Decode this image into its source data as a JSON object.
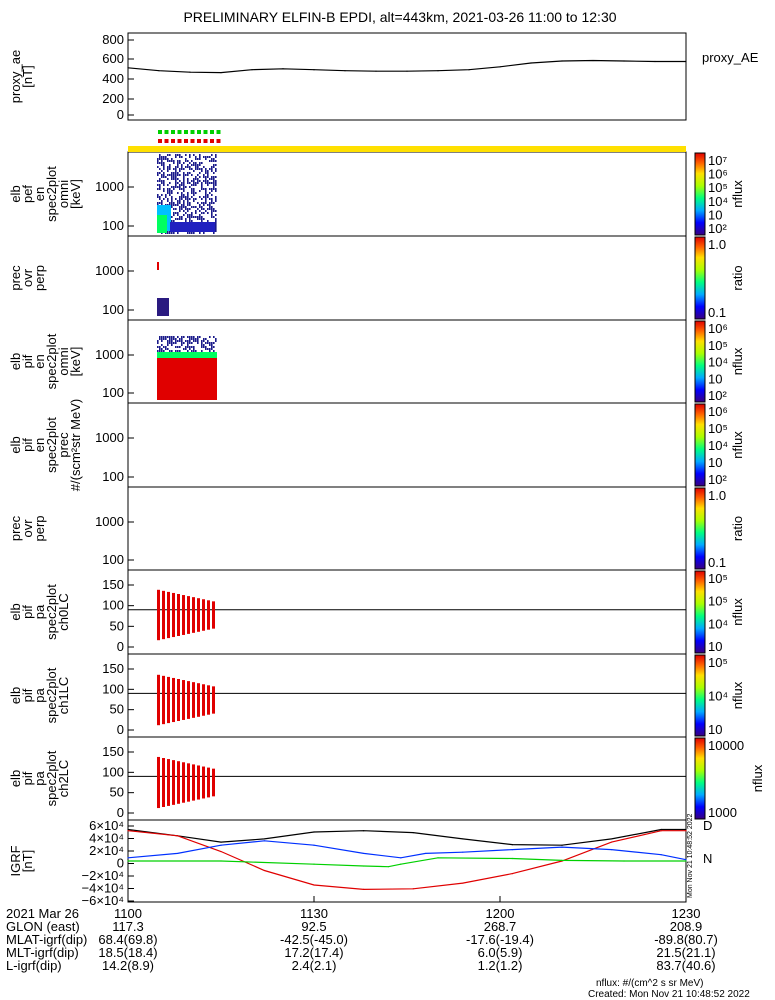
{
  "title": "PRELIMINARY ELFIN-B EPDI, alt=443km, 2021-03-26 11:00 to 12:30",
  "colors": {
    "red": "#e00000",
    "yellow": "#ffe000",
    "green": "#00d000",
    "blue": "#0030ff",
    "navy": "#1a1a8a",
    "black": "#000000"
  },
  "panels": [
    {
      "id": "proxy_ae",
      "ylabel": [
        "proxy_ae",
        "[nT]"
      ],
      "yticks": [
        "800",
        "600",
        "400",
        "200",
        "0"
      ],
      "legend": "proxy_AE"
    },
    {
      "id": "elb_pef_en",
      "ylabel": [
        "elb",
        "pef",
        "en",
        "spec2plot",
        "omni",
        "[keV]"
      ],
      "yticks": [
        "1000",
        "100"
      ],
      "colorbar": {
        "ticks": [
          "10⁷",
          "10⁶",
          "10⁵",
          "10⁴",
          "10⁳",
          "10²"
        ],
        "label": "nflux"
      }
    },
    {
      "id": "prec_ovr_perp_e",
      "ylabel": [
        "prec",
        "ovr",
        "perp"
      ],
      "yticks": [
        "1000",
        "100"
      ],
      "colorbar": {
        "ticks": [
          "1.0",
          "0.1"
        ],
        "label": "ratio"
      }
    },
    {
      "id": "elb_pif_en",
      "ylabel": [
        "elb",
        "pif",
        "en",
        "spec2plot",
        "omni",
        "[keV]"
      ],
      "yticks": [
        "1000",
        "100"
      ],
      "colorbar": {
        "ticks": [
          "10⁶",
          "10⁵",
          "10⁴",
          "10⁳",
          "10²"
        ],
        "label": "nflux"
      }
    },
    {
      "id": "elb_pif_en_prec",
      "ylabel": [
        "elb",
        "pif",
        "en",
        "spec2plot",
        "prec",
        "#/(scm²str MeV)"
      ],
      "yticks": [
        "1000",
        "100"
      ],
      "colorbar": {
        "ticks": [
          "10⁶",
          "10⁵",
          "10⁴",
          "10⁳",
          "10²"
        ],
        "label": "nflux"
      }
    },
    {
      "id": "prec_ovr_perp_i",
      "ylabel": [
        "prec",
        "ovr",
        "perp"
      ],
      "yticks": [
        "1000",
        "100"
      ],
      "colorbar": {
        "ticks": [
          "1.0",
          "0.1"
        ],
        "label": "ratio"
      }
    },
    {
      "id": "elb_pif_pa_ch0",
      "ylabel": [
        "elb",
        "pif",
        "pa",
        "spec2plot",
        "ch0LC"
      ],
      "yticks": [
        "150",
        "100",
        "50",
        "0"
      ],
      "colorbar": {
        "ticks": [
          "10⁵",
          "10⁵",
          "10⁴",
          "10⁳"
        ],
        "label": "nflux"
      }
    },
    {
      "id": "elb_pif_pa_ch1",
      "ylabel": [
        "elb",
        "pif",
        "pa",
        "spec2plot",
        "ch1LC"
      ],
      "yticks": [
        "150",
        "100",
        "50",
        "0"
      ],
      "colorbar": {
        "ticks": [
          "10⁵",
          "10⁴",
          "10⁳"
        ],
        "label": "nflux"
      }
    },
    {
      "id": "elb_pif_pa_ch2",
      "ylabel": [
        "elb",
        "pif",
        "pa",
        "spec2plot",
        "ch2LC"
      ],
      "yticks": [
        "150",
        "100",
        "50",
        "0"
      ],
      "colorbar": {
        "ticks": [
          "10000",
          "1000"
        ],
        "label": "nflux"
      }
    },
    {
      "id": "igrf",
      "ylabel": [
        "IGRF",
        "[nT]"
      ],
      "yticks": [
        "6×10⁴",
        "4×10⁴",
        "2×10⁴",
        "0",
        "−2×10⁴",
        "−4×10⁴",
        "−6×10⁴"
      ],
      "side_labels": [
        "D",
        "N"
      ],
      "stamp": "Mon Nov 21 10:48:52 2022"
    }
  ],
  "chart_data": [
    {
      "type": "line",
      "name": "proxy_ae",
      "xlim": [
        0,
        90
      ],
      "ylim": [
        -50,
        850
      ],
      "series": [
        {
          "name": "proxy_AE",
          "x": [
            0,
            5,
            10,
            15,
            20,
            25,
            30,
            35,
            40,
            45,
            50,
            55,
            60,
            65,
            70,
            75,
            80,
            85,
            90
          ],
          "y": [
            490,
            460,
            445,
            440,
            470,
            480,
            470,
            460,
            455,
            455,
            460,
            470,
            500,
            540,
            560,
            565,
            560,
            555,
            555
          ]
        }
      ]
    },
    {
      "type": "line",
      "name": "igrf",
      "xlim": [
        0,
        90
      ],
      "ylim": [
        -65000,
        65000
      ],
      "series": [
        {
          "name": "black",
          "x": [
            0,
            8,
            15,
            22,
            30,
            38,
            46,
            54,
            62,
            70,
            78,
            86,
            90
          ],
          "y": [
            50000,
            40000,
            30000,
            35000,
            46000,
            48000,
            45000,
            35000,
            26000,
            25000,
            35000,
            50000,
            50000
          ]
        },
        {
          "name": "red",
          "x": [
            0,
            8,
            15,
            22,
            30,
            38,
            46,
            54,
            62,
            70,
            78,
            86,
            90
          ],
          "y": [
            48000,
            40000,
            15000,
            -15000,
            -38000,
            -45000,
            -44000,
            -35000,
            -20000,
            0,
            30000,
            48000,
            48000
          ]
        },
        {
          "name": "blue",
          "x": [
            0,
            8,
            15,
            22,
            30,
            38,
            44,
            48,
            54,
            62,
            70,
            78,
            86,
            90
          ],
          "y": [
            5000,
            12000,
            25000,
            32000,
            25000,
            12000,
            5000,
            12000,
            14000,
            18000,
            22000,
            18000,
            10000,
            2000
          ]
        },
        {
          "name": "green",
          "x": [
            0,
            15,
            30,
            38,
            42,
            44,
            50,
            62,
            70,
            80,
            90
          ],
          "y": [
            0,
            0,
            -5000,
            -8000,
            -9000,
            -5000,
            5000,
            4000,
            1000,
            0,
            0
          ]
        }
      ]
    }
  ],
  "xaxis": {
    "label": "2021 Mar 26",
    "ticks": [
      "1100",
      "1130",
      "1200",
      "1230"
    ]
  },
  "ephemeris": [
    {
      "label": "GLON (east)",
      "values": [
        "117.3",
        "92.5",
        "268.7",
        "208.9"
      ]
    },
    {
      "label": "MLAT-igrf(dip)",
      "values": [
        "68.4(69.8)",
        "-42.5(-45.0)",
        "-17.6(-19.4)",
        "-89.8(80.7)"
      ]
    },
    {
      "label": "MLT-igrf(dip)",
      "values": [
        "18.5(18.4)",
        "17.2(17.4)",
        "6.0(5.9)",
        "21.5(21.1)"
      ]
    },
    {
      "label": "L-igrf(dip)",
      "values": [
        "14.2(8.9)",
        "2.4(2.1)",
        "1.2(1.2)",
        "83.7(40.6)"
      ]
    }
  ],
  "notes": {
    "units": "nflux: #/(cm^2 s sr MeV)",
    "created": "Created: Mon Nov 21 10:48:52 2022"
  }
}
